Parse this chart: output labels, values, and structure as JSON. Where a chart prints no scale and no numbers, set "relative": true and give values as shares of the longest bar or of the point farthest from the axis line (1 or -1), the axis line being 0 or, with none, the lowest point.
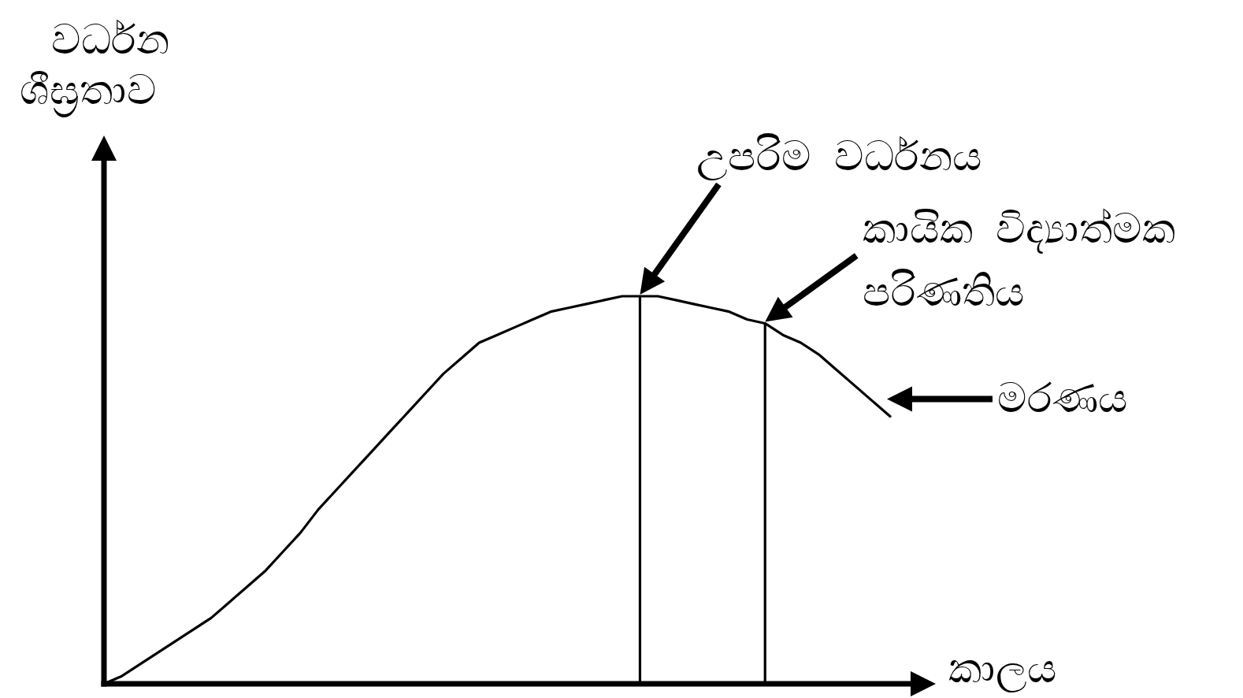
{
  "chart_data": {
    "type": "line",
    "relative": true,
    "xlabel": "කාලය",
    "ylabel": "වර්ධන ශීඝ්‍රතාව",
    "line_style": "solid",
    "categories": [
      null,
      null,
      null,
      null,
      null,
      null,
      null,
      null,
      null,
      null,
      null,
      null,
      null,
      null,
      null,
      null,
      null,
      null,
      null,
      null,
      null,
      null,
      null,
      null,
      null,
      null,
      null,
      null,
      null,
      null,
      null,
      null,
      null,
      null,
      null,
      null,
      null,
      null,
      null,
      null,
      null,
      null,
      null,
      null,
      null
    ],
    "series": [
      {
        "color": "#000000",
        "values": [
          0,
          0.02,
          0.05,
          0.08,
          0.11,
          0.14,
          0.17,
          0.21,
          0.25,
          0.29,
          0.34,
          0.39,
          0.45,
          0.5,
          0.55,
          0.6,
          0.65,
          0.7,
          0.75,
          0.8,
          0.84,
          0.88,
          0.9,
          0.92,
          0.94,
          0.96,
          0.97,
          0.98,
          0.99,
          1.0,
          1.0,
          1.0,
          0.99,
          0.98,
          0.97,
          0.96,
          0.94,
          0.93,
          0.9,
          0.88,
          0.85,
          0.81,
          0.77,
          0.73,
          0.69
        ]
      }
    ],
    "annotations": [
      "උපරිම වර්ධනය",
      "කායික විද්‍යාත්මක පරිණතිය",
      "මරණය"
    ]
  }
}
